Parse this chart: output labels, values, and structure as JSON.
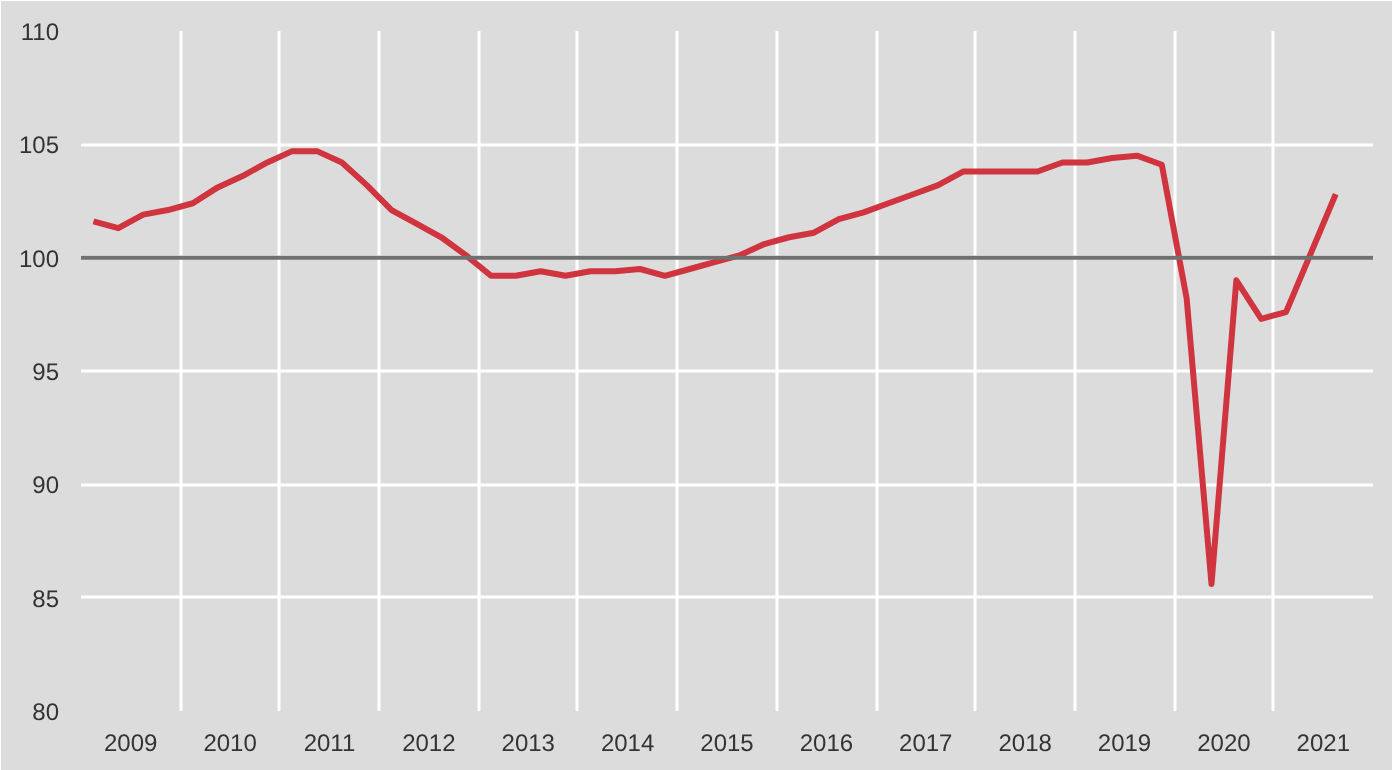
{
  "chart_data": {
    "type": "line",
    "x": [
      2009.125,
      2009.375,
      2009.625,
      2009.875,
      2010.125,
      2010.375,
      2010.625,
      2010.875,
      2011.125,
      2011.375,
      2011.625,
      2011.875,
      2012.125,
      2012.375,
      2012.625,
      2012.875,
      2013.125,
      2013.375,
      2013.625,
      2013.875,
      2014.125,
      2014.375,
      2014.625,
      2014.875,
      2015.125,
      2015.375,
      2015.625,
      2015.875,
      2016.125,
      2016.375,
      2016.625,
      2016.875,
      2017.125,
      2017.375,
      2017.625,
      2017.875,
      2018.125,
      2018.375,
      2018.625,
      2018.875,
      2019.125,
      2019.375,
      2019.625,
      2019.875,
      2020.125,
      2020.375,
      2020.625,
      2020.875,
      2021.125,
      2021.375,
      2021.625
    ],
    "series": [
      {
        "color": "#d0343f",
        "values": [
          101.6,
          101.3,
          101.9,
          102.1,
          102.4,
          103.1,
          103.6,
          104.2,
          104.7,
          104.7,
          104.2,
          103.2,
          102.1,
          101.5,
          100.9,
          100.1,
          99.2,
          99.2,
          99.4,
          99.2,
          99.4,
          99.4,
          99.5,
          99.2,
          99.5,
          99.8,
          100.1,
          100.6,
          100.9,
          101.1,
          101.7,
          102.0,
          102.4,
          102.8,
          103.2,
          103.8,
          103.8,
          103.8,
          103.8,
          104.2,
          104.2,
          104.4,
          104.5,
          104.1,
          98.2,
          85.6,
          99.0,
          97.3,
          97.6,
          100.2,
          102.8
        ]
      }
    ],
    "xlim": [
      2009,
      2022
    ],
    "xticks": [
      {
        "value": 2009.5,
        "label": "2009"
      },
      {
        "value": 2010.5,
        "label": "2010"
      },
      {
        "value": 2011.5,
        "label": "2011"
      },
      {
        "value": 2012.5,
        "label": "2012"
      },
      {
        "value": 2013.5,
        "label": "2013"
      },
      {
        "value": 2014.5,
        "label": "2014"
      },
      {
        "value": 2015.5,
        "label": "2015"
      },
      {
        "value": 2016.5,
        "label": "2016"
      },
      {
        "value": 2017.5,
        "label": "2017"
      },
      {
        "value": 2018.5,
        "label": "2018"
      },
      {
        "value": 2019.5,
        "label": "2019"
      },
      {
        "value": 2020.5,
        "label": "2020"
      },
      {
        "value": 2021.5,
        "label": "2021"
      }
    ],
    "ylim": [
      80,
      110
    ],
    "yticks": [
      80,
      85,
      90,
      95,
      100,
      105,
      110
    ],
    "grid": true,
    "ref_lines": [
      {
        "axis": "y",
        "value": 100,
        "color": "#707070"
      }
    ],
    "marker": "none",
    "line_style": "solid"
  }
}
